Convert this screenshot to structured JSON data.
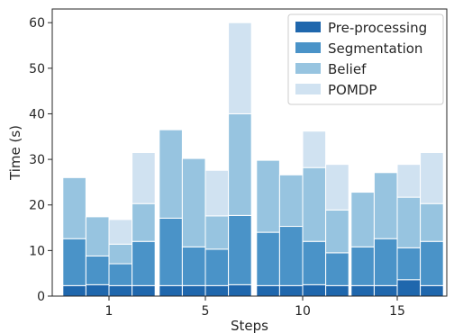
{
  "chart_data": {
    "type": "bar",
    "stacked": true,
    "xlabel": "Steps",
    "ylabel": "Time (s)",
    "ylim": [
      0,
      63
    ],
    "yticks": [
      0,
      10,
      20,
      30,
      40,
      50,
      60
    ],
    "grid": false,
    "legend_position": "top-right",
    "groups": [
      {
        "label": "1",
        "bars": [
          [
            2.3,
            10.3,
            13.4,
            0
          ],
          [
            2.5,
            6.3,
            8.6,
            0
          ],
          [
            2.3,
            4.8,
            4.3,
            5.4
          ],
          [
            2.3,
            9.7,
            8.3,
            11.2
          ]
        ]
      },
      {
        "label": "5",
        "bars": [
          [
            2.3,
            14.8,
            19.4,
            0
          ],
          [
            2.3,
            8.5,
            19.4,
            0
          ],
          [
            2.3,
            8.0,
            7.3,
            10.0
          ],
          [
            2.5,
            15.2,
            22.3,
            20.0
          ]
        ]
      },
      {
        "label": "10",
        "bars": [
          [
            2.3,
            11.7,
            15.8,
            0
          ],
          [
            2.3,
            13.0,
            11.3,
            0
          ],
          [
            2.5,
            9.5,
            16.2,
            8.0
          ],
          [
            2.3,
            7.2,
            9.4,
            10.0
          ]
        ]
      },
      {
        "label": "15",
        "bars": [
          [
            2.3,
            8.5,
            12.0,
            0
          ],
          [
            2.3,
            10.3,
            14.5,
            0
          ],
          [
            3.6,
            7.0,
            11.1,
            7.2
          ],
          [
            2.3,
            9.7,
            8.3,
            11.2
          ]
        ]
      }
    ],
    "series": [
      {
        "name": "Pre-processing",
        "color": "#1f67ad"
      },
      {
        "name": "Segmentation",
        "color": "#4a93c8"
      },
      {
        "name": "Belief",
        "color": "#97c4e0"
      },
      {
        "name": "POMDP",
        "color": "#d0e2f1"
      }
    ]
  }
}
